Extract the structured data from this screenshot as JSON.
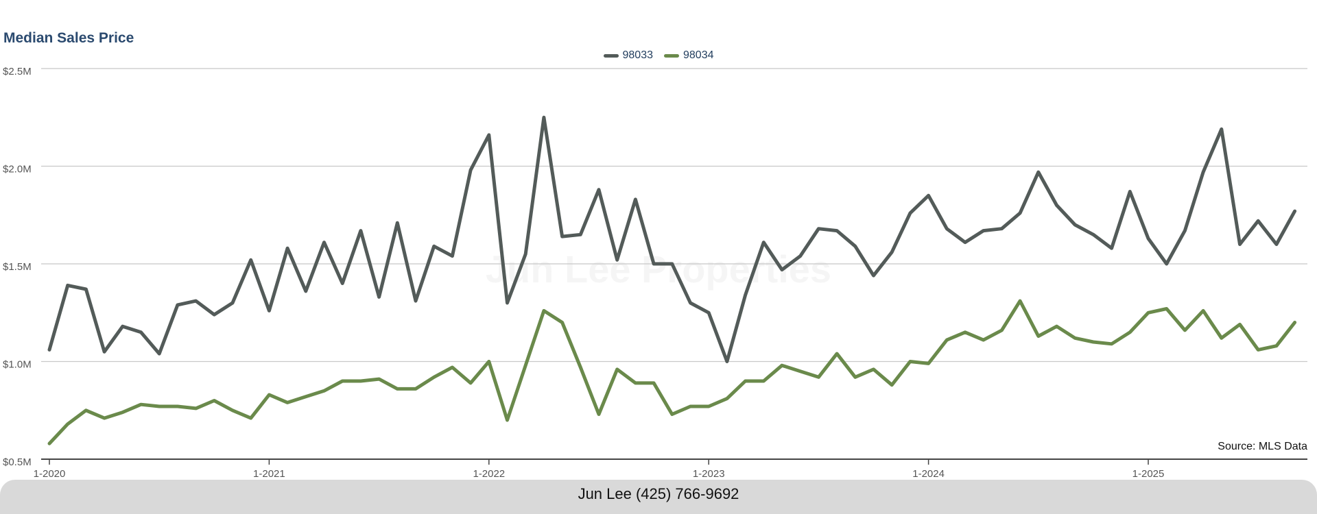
{
  "chart_data": {
    "type": "line",
    "title": "Median Sales Price",
    "x_tick_labels": [
      "1-2020",
      "1-2021",
      "1-2022",
      "1-2023",
      "1-2024",
      "1-2025"
    ],
    "y_tick_labels": [
      "$0.5M",
      "$1.0M",
      "$1.5M",
      "$2.0M",
      "$2.5M"
    ],
    "ylim": [
      0.5,
      2.5
    ],
    "y_unit": "$M",
    "grid": "horizontal",
    "legend_position": "top-center",
    "x": [
      "2020-01",
      "2020-02",
      "2020-03",
      "2020-04",
      "2020-05",
      "2020-06",
      "2020-07",
      "2020-08",
      "2020-09",
      "2020-10",
      "2020-11",
      "2020-12",
      "2021-01",
      "2021-02",
      "2021-03",
      "2021-04",
      "2021-05",
      "2021-06",
      "2021-07",
      "2021-08",
      "2021-09",
      "2021-10",
      "2021-11",
      "2021-12",
      "2022-01",
      "2022-02",
      "2022-03",
      "2022-04",
      "2022-05",
      "2022-06",
      "2022-07",
      "2022-08",
      "2022-09",
      "2022-10",
      "2022-11",
      "2022-12",
      "2023-01",
      "2023-02",
      "2023-03",
      "2023-04",
      "2023-05",
      "2023-06",
      "2023-07",
      "2023-08",
      "2023-09",
      "2023-10",
      "2023-11",
      "2023-12",
      "2024-01",
      "2024-02",
      "2024-03",
      "2024-04",
      "2024-05",
      "2024-06",
      "2024-07",
      "2024-08",
      "2024-09",
      "2024-10",
      "2024-11",
      "2024-12",
      "2025-01",
      "2025-02",
      "2025-03",
      "2025-04",
      "2025-05",
      "2025-06",
      "2025-07",
      "2025-08",
      "2025-09"
    ],
    "series": [
      {
        "name": "98033",
        "color": "#535b59",
        "values": [
          1.06,
          1.39,
          1.37,
          1.05,
          1.18,
          1.15,
          1.04,
          1.29,
          1.31,
          1.24,
          1.3,
          1.52,
          1.26,
          1.58,
          1.36,
          1.61,
          1.4,
          1.67,
          1.33,
          1.71,
          1.31,
          1.59,
          1.54,
          1.98,
          2.16,
          1.3,
          1.55,
          2.25,
          1.64,
          1.65,
          1.88,
          1.52,
          1.83,
          1.5,
          1.5,
          1.3,
          1.25,
          1.0,
          1.34,
          1.61,
          1.47,
          1.54,
          1.68,
          1.67,
          1.59,
          1.44,
          1.56,
          1.76,
          1.85,
          1.68,
          1.61,
          1.67,
          1.68,
          1.76,
          1.97,
          1.8,
          1.7,
          1.65,
          1.58,
          1.87,
          1.63,
          1.5,
          1.67,
          1.97,
          2.19,
          1.6,
          1.72,
          1.6,
          1.77
        ]
      },
      {
        "name": "98034",
        "color": "#6a8a4b",
        "values": [
          0.58,
          0.68,
          0.75,
          0.71,
          0.74,
          0.78,
          0.77,
          0.77,
          0.76,
          0.8,
          0.75,
          0.71,
          0.83,
          0.79,
          0.82,
          0.85,
          0.9,
          0.9,
          0.91,
          0.86,
          0.86,
          0.92,
          0.97,
          0.89,
          1.0,
          0.7,
          0.98,
          1.26,
          1.2,
          0.97,
          0.73,
          0.96,
          0.89,
          0.89,
          0.73,
          0.77,
          0.77,
          0.81,
          0.9,
          0.9,
          0.98,
          0.95,
          0.92,
          1.04,
          0.92,
          0.96,
          0.88,
          1.0,
          0.99,
          1.11,
          1.15,
          1.11,
          1.16,
          1.31,
          1.13,
          1.18,
          1.12,
          1.1,
          1.09,
          1.15,
          1.25,
          1.27,
          1.16,
          1.26,
          1.12,
          1.19,
          1.06,
          1.08,
          1.2
        ]
      }
    ]
  },
  "watermark": "Jun Lee Properties",
  "source": "Source: MLS Data",
  "footer": "Jun Lee (425) 766-9692"
}
